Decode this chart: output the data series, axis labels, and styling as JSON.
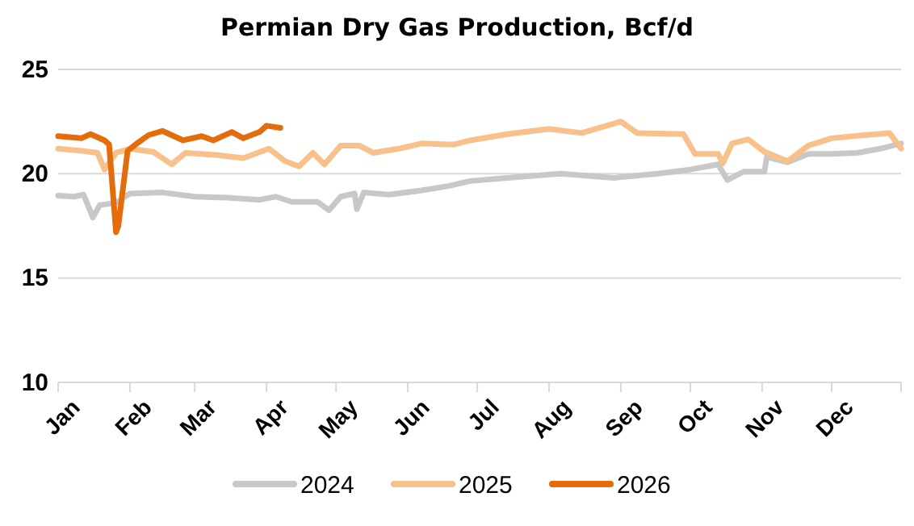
{
  "chart_data": {
    "type": "line",
    "title": "Permian Dry Gas Production, Bcf/d",
    "xlim": [
      "--01-01",
      "--12-31"
    ],
    "xticks": [
      {
        "value": "--01-01",
        "label": "Jan"
      },
      {
        "value": "--02-01",
        "label": "Feb"
      },
      {
        "value": "--03-01",
        "label": "Mar"
      },
      {
        "value": "--04-01",
        "label": "Apr"
      },
      {
        "value": "--05-01",
        "label": "May"
      },
      {
        "value": "--06-01",
        "label": "Jun"
      },
      {
        "value": "--07-01",
        "label": "Jul"
      },
      {
        "value": "--08-01",
        "label": "Aug"
      },
      {
        "value": "--09-01",
        "label": "Sep"
      },
      {
        "value": "--10-01",
        "label": "Oct"
      },
      {
        "value": "--11-01",
        "label": "Nov"
      },
      {
        "value": "--12-01",
        "label": "Dec"
      },
      {
        "value": "--12-31",
        "label": null
      }
    ],
    "ylim": [
      10,
      25
    ],
    "yticks": [
      10,
      15,
      20,
      25
    ],
    "grid": "y",
    "legend": "bottom",
    "line_style": "solid",
    "marker": "none",
    "series": [
      {
        "name": "2024",
        "color": "#c8c8c8",
        "x": [
          "--01-01",
          "--01-08",
          "--01-12",
          "--01-16",
          "--01-19",
          "--01-26",
          "--02-01",
          "--02-15",
          "--03-01",
          "--03-15",
          "--03-29",
          "--04-05",
          "--04-12",
          "--04-23",
          "--04-28",
          "--05-03",
          "--05-09",
          "--05-10",
          "--05-13",
          "--05-24",
          "--06-07",
          "--06-18",
          "--06-28",
          "--07-14",
          "--08-06",
          "--08-29",
          "--09-17",
          "--10-01",
          "--10-13",
          "--10-17",
          "--10-24",
          "--11-02",
          "--11-03",
          "--11-12",
          "--11-21",
          "--12-01",
          "--12-12",
          "--12-22",
          "--12-31"
        ],
        "values": [
          18.95,
          18.9,
          19.0,
          17.9,
          18.5,
          18.6,
          19.05,
          19.1,
          18.9,
          18.85,
          18.75,
          18.9,
          18.65,
          18.65,
          18.25,
          18.9,
          19.05,
          18.3,
          19.1,
          19.0,
          19.2,
          19.4,
          19.65,
          19.8,
          20.0,
          19.8,
          20.0,
          20.2,
          20.45,
          19.7,
          20.1,
          20.1,
          20.8,
          20.55,
          20.95,
          20.95,
          21.0,
          21.2,
          21.45
        ]
      },
      {
        "name": "2025",
        "color": "#f8c08a",
        "x": [
          "--01-01",
          "--01-11",
          "--01-18",
          "--01-21",
          "--01-26",
          "--02-01",
          "--02-11",
          "--02-19",
          "--02-25",
          "--03-10",
          "--03-22",
          "--04-02",
          "--04-09",
          "--04-15",
          "--04-21",
          "--04-26",
          "--05-03",
          "--05-11",
          "--05-17",
          "--05-28",
          "--06-07",
          "--06-18",
          "--06-21",
          "--06-28",
          "--07-14",
          "--08-01",
          "--08-15",
          "--09-01",
          "--09-08",
          "--09-28",
          "--10-03",
          "--10-13",
          "--10-15",
          "--10-19",
          "--10-26",
          "--11-02",
          "--11-12",
          "--11-21",
          "--12-01",
          "--12-15",
          "--12-26",
          "--12-31"
        ],
        "values": [
          21.2,
          21.1,
          21.0,
          20.2,
          21.0,
          21.2,
          21.05,
          20.45,
          21.0,
          20.9,
          20.75,
          21.2,
          20.6,
          20.35,
          21.0,
          20.45,
          21.35,
          21.35,
          21.0,
          21.2,
          21.45,
          21.4,
          21.4,
          21.6,
          21.9,
          22.15,
          21.95,
          22.5,
          21.95,
          21.9,
          20.95,
          20.95,
          20.5,
          21.45,
          21.65,
          21.05,
          20.6,
          21.35,
          21.7,
          21.85,
          21.95,
          21.2
        ]
      },
      {
        "name": "2026",
        "color": "#e46c0a",
        "x": [
          "--01-01",
          "--01-11",
          "--01-15",
          "--01-21",
          "--01-23",
          "--01-26",
          "--01-27",
          "--01-31",
          "--02-04",
          "--02-09",
          "--02-15",
          "--02-24",
          "--03-04",
          "--03-09",
          "--03-17",
          "--03-22",
          "--03-29",
          "--04-01",
          "--04-07"
        ],
        "values": [
          21.8,
          21.7,
          21.9,
          21.6,
          21.4,
          17.2,
          17.5,
          21.1,
          21.45,
          21.85,
          22.05,
          21.6,
          21.8,
          21.6,
          22.0,
          21.7,
          22.0,
          22.3,
          22.2
        ]
      }
    ]
  }
}
